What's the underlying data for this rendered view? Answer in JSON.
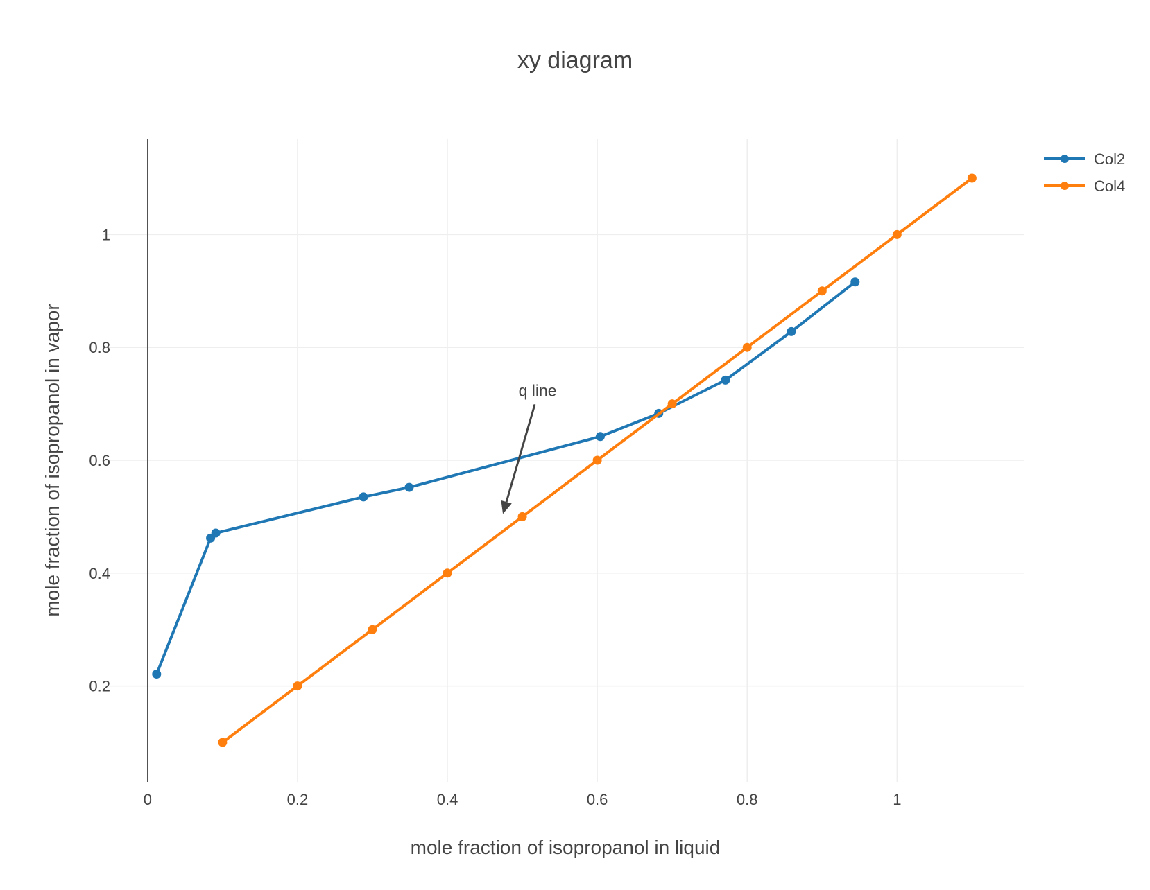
{
  "chart_data": {
    "type": "line",
    "title": "xy diagram",
    "xlabel": "mole fraction of isopropanol in liquid",
    "ylabel": "mole fraction of isopropanol in vapor",
    "xlim": [
      -0.06,
      1.17
    ],
    "ylim": [
      0.03,
      1.17
    ],
    "x_ticks": [
      0,
      0.2,
      0.4,
      0.6,
      0.8,
      1
    ],
    "x_tick_labels": [
      "0",
      "0.2",
      "0.4",
      "0.6",
      "0.8",
      "1"
    ],
    "y_ticks": [
      0.2,
      0.4,
      0.6,
      0.8,
      1
    ],
    "y_tick_labels": [
      "0.2",
      "0.4",
      "0.6",
      "0.8",
      "1"
    ],
    "grid": true,
    "legend_position": "top-right",
    "series": [
      {
        "name": "Col2",
        "color": "#1f77b4",
        "x": [
          0.012,
          0.084,
          0.091,
          0.288,
          0.349,
          0.604,
          0.682,
          0.771,
          0.859,
          0.944
        ],
        "y": [
          0.221,
          0.462,
          0.471,
          0.535,
          0.552,
          0.642,
          0.683,
          0.742,
          0.828,
          0.916
        ]
      },
      {
        "name": "Col4",
        "color": "#ff7f0e",
        "x": [
          0.1,
          0.2,
          0.3,
          0.4,
          0.5,
          0.6,
          0.7,
          0.8,
          0.9,
          1.0,
          1.1
        ],
        "y": [
          0.1,
          0.2,
          0.3,
          0.4,
          0.5,
          0.6,
          0.7,
          0.8,
          0.9,
          1.0,
          1.1
        ]
      }
    ],
    "annotations": [
      {
        "text": "q line",
        "x": 0.5,
        "y": 0.5
      }
    ]
  }
}
